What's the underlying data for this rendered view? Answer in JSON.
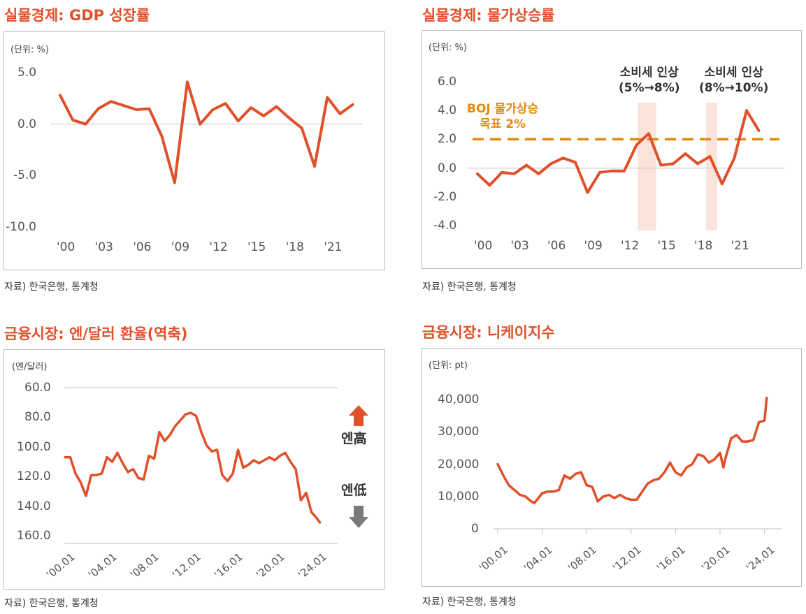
{
  "source_note": "자료) 한국은행, 통계청",
  "colors": {
    "line": "#e0502a",
    "target": "#e08a10",
    "band": "#fbe3dc",
    "grid": "#cccccc",
    "down_arrow": "#7a7a7a"
  },
  "chart_data": [
    {
      "type": "line",
      "title": "실물경제: GDP 성장률",
      "unit_label": "(단위: %)",
      "ylim": [
        -10,
        5
      ],
      "yticks": [
        "5.0",
        "0.0",
        "-5.0",
        "-10.0"
      ],
      "ytick_values": [
        5,
        0,
        -5,
        -10
      ],
      "xtick_labels": [
        "'00",
        "'03",
        "'06",
        "'09",
        "'12",
        "'15",
        "'18",
        "'21"
      ],
      "xtick_values": [
        2000,
        2003,
        2006,
        2009,
        2012,
        2015,
        2018,
        2021
      ],
      "x": [
        2000,
        2001,
        2002,
        2003,
        2004,
        2005,
        2006,
        2007,
        2008,
        2009,
        2010,
        2011,
        2012,
        2013,
        2014,
        2015,
        2016,
        2017,
        2018,
        2019,
        2020,
        2021,
        2022,
        2023
      ],
      "values": [
        2.8,
        0.4,
        0.0,
        1.5,
        2.2,
        1.8,
        1.4,
        1.5,
        -1.2,
        -5.7,
        4.1,
        0.0,
        1.4,
        2.0,
        0.3,
        1.6,
        0.8,
        1.7,
        0.6,
        -0.4,
        -4.1,
        2.6,
        1.0,
        1.9
      ],
      "source": "자료) 한국은행, 통계청"
    },
    {
      "type": "line",
      "title": "실물경제: 물가상승률",
      "unit_label": "(단위: %)",
      "ylim": [
        -4,
        6
      ],
      "yticks": [
        "6.0",
        "4.0",
        "2.0",
        "0.0",
        "-2.0",
        "-4.0"
      ],
      "ytick_values": [
        6,
        4,
        2,
        0,
        -2,
        -4
      ],
      "xtick_labels": [
        "'00",
        "'03",
        "'06",
        "'09",
        "'12",
        "'15",
        "'18",
        "'21"
      ],
      "xtick_values": [
        2000,
        2003,
        2006,
        2009,
        2012,
        2015,
        2018,
        2021
      ],
      "x": [
        2000,
        2001,
        2002,
        2003,
        2004,
        2005,
        2006,
        2007,
        2008,
        2009,
        2010,
        2011,
        2012,
        2013,
        2014,
        2015,
        2016,
        2017,
        2018,
        2019,
        2020,
        2021,
        2022,
        2023
      ],
      "values": [
        -0.4,
        -1.2,
        -0.3,
        -0.4,
        0.2,
        -0.4,
        0.3,
        0.7,
        0.4,
        -1.7,
        -0.3,
        -0.2,
        -0.2,
        1.6,
        2.4,
        0.2,
        0.3,
        1.0,
        0.3,
        0.8,
        -1.1,
        0.7,
        4.0,
        2.6
      ],
      "target_line": {
        "value": 2.0,
        "label_line1": "BOJ 물가상승",
        "label_line2": "목표 2%"
      },
      "bands": [
        {
          "from": 2013.1,
          "to": 2014.6,
          "label_line1": "소비세 인상",
          "label_line2": "(5%→8%)"
        },
        {
          "from": 2018.7,
          "to": 2019.6,
          "label_line1": "소비세 인상",
          "label_line2": "(8%→10%)"
        }
      ],
      "source": "자료) 한국은행, 통계청"
    },
    {
      "type": "line",
      "title": "금융시장: 엔/달러 환율(역축)",
      "unit_label": "(엔/달러)",
      "ylim": [
        60,
        160
      ],
      "inverted": true,
      "yticks": [
        "60.0",
        "80.0",
        "100.0",
        "120.0",
        "140.0",
        "160.0"
      ],
      "ytick_values": [
        60,
        80,
        100,
        120,
        140,
        160
      ],
      "xtick_labels": [
        "'00.01",
        "'04.01",
        "'08.01",
        "'12.01",
        "'16.01",
        "'20.01",
        "'24.01"
      ],
      "xtick_values": [
        2000,
        2004,
        2008,
        2012,
        2016,
        2020,
        2024
      ],
      "x": [
        2000,
        2000.5,
        2001,
        2001.5,
        2002,
        2002.5,
        2003,
        2003.5,
        2004,
        2004.5,
        2005,
        2005.5,
        2006,
        2006.5,
        2007,
        2007.5,
        2008,
        2008.5,
        2009,
        2009.5,
        2010,
        2010.5,
        2011,
        2011.5,
        2012,
        2012.5,
        2013,
        2013.5,
        2014,
        2014.5,
        2015,
        2015.5,
        2016,
        2016.5,
        2017,
        2017.5,
        2018,
        2018.5,
        2019,
        2019.5,
        2020,
        2020.5,
        2021,
        2021.5,
        2022,
        2022.5,
        2023,
        2023.5,
        2024,
        2024.3
      ],
      "values": [
        107,
        107,
        118,
        124,
        133,
        119,
        119,
        118,
        107,
        110,
        104,
        111,
        117,
        115,
        121,
        122,
        106,
        108,
        90,
        96,
        92,
        86,
        82,
        78,
        77,
        79,
        90,
        99,
        103,
        102,
        119,
        123,
        118,
        102,
        114,
        112,
        109,
        111,
        109,
        107,
        109,
        106,
        104,
        110,
        115,
        136,
        131,
        144,
        148,
        151
      ],
      "annotations": {
        "up_label": "엔高",
        "down_label": "엔低"
      },
      "source": "자료) 한국은행, 통계청"
    },
    {
      "type": "line",
      "title": "금융시장: 니케이지수",
      "unit_label": "(단위: pt)",
      "ylim": [
        0,
        40000
      ],
      "yticks": [
        "40,000",
        "30,000",
        "20,000",
        "10,000",
        "0"
      ],
      "ytick_values": [
        40000,
        30000,
        20000,
        10000,
        0
      ],
      "xtick_labels": [
        "'00.01",
        "'04.01",
        "'08.01",
        "'12.01",
        "'16.01",
        "'20.01",
        "'24.01"
      ],
      "xtick_values": [
        2000,
        2004,
        2008,
        2012,
        2016,
        2020,
        2024
      ],
      "x": [
        2000,
        2000.5,
        2001,
        2001.5,
        2002,
        2002.5,
        2003,
        2003.3,
        2004,
        2004.5,
        2005,
        2005.5,
        2006,
        2006.5,
        2007,
        2007.5,
        2008,
        2008.5,
        2009,
        2009.5,
        2010,
        2010.5,
        2011,
        2011.5,
        2012,
        2012.5,
        2013,
        2013.5,
        2014,
        2014.5,
        2015,
        2015.5,
        2016,
        2016.5,
        2017,
        2017.5,
        2018,
        2018.5,
        2019,
        2019.5,
        2020,
        2020.3,
        2020.5,
        2021,
        2021.5,
        2022,
        2022.5,
        2023,
        2023.5,
        2024,
        2024.2
      ],
      "values": [
        20000,
        16500,
        13500,
        12000,
        10500,
        10000,
        8500,
        8000,
        11000,
        11500,
        11500,
        12000,
        16500,
        15500,
        17000,
        17500,
        13500,
        13000,
        8500,
        10000,
        10500,
        9500,
        10500,
        9500,
        9000,
        9000,
        11500,
        14000,
        15000,
        15500,
        17500,
        20500,
        17500,
        16500,
        19000,
        20000,
        23000,
        22500,
        20500,
        21500,
        23500,
        19000,
        22000,
        28000,
        29000,
        27000,
        27000,
        27500,
        33000,
        33500,
        40500
      ],
      "source": "자료) 한국은행, 통계청"
    }
  ]
}
